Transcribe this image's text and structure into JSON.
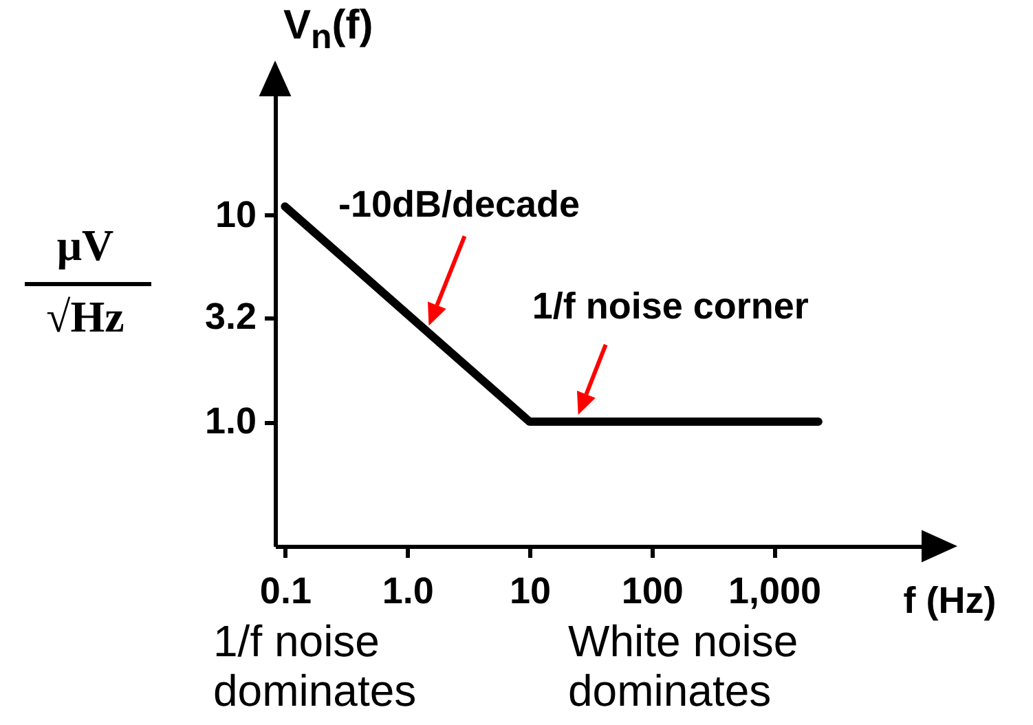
{
  "chart_data": {
    "type": "line",
    "ylabel": "V$_{n}$(f)",
    "xlabel": "f (Hz)",
    "x": [
      0.1,
      10,
      2300
    ],
    "series": [
      {
        "color": "#000000",
        "values": [
          11,
          1.0,
          1.0
        ]
      }
    ],
    "log": "xy",
    "grid": false,
    "xlim": [
      0.083,
      27000
    ],
    "ylim": [
      0.25,
      51
    ],
    "xticks": [
      0.1,
      {
        "value": 1,
        "label": "1.0"
      },
      10,
      100,
      {
        "value": 1000,
        "label": "1,000"
      }
    ],
    "yticks": [
      {
        "value": 1,
        "label": "1.0"
      },
      3.2,
      10
    ],
    "annotations": [
      {
        "text": "-10dB/decade",
        "x": 1.5,
        "y": 2.7
      },
      {
        "text": "1/f noise corner",
        "x": 25,
        "y": 1.0
      },
      "μV",
      "√Hz",
      "1/f noise dominates",
      "White noise dominates"
    ]
  }
}
